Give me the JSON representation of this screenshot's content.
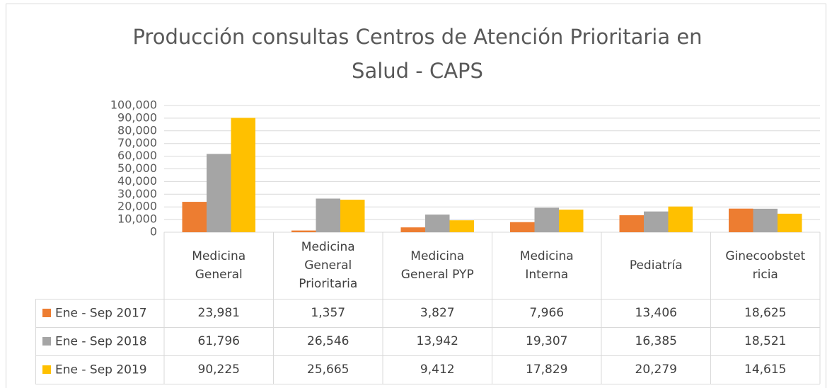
{
  "chart_data": {
    "type": "bar",
    "title": "Producción consultas Centros de Atención Prioritaria en Salud - CAPS",
    "categories": [
      "Medicina General",
      "Medicina General Prioritaria",
      "Medicina General PYP",
      "Medicina Interna",
      "Pediatría",
      "Ginecoobstetricia"
    ],
    "series": [
      {
        "name": "Ene - Sep 2017",
        "color": "#ed7d31",
        "values": [
          23981,
          1357,
          3827,
          7966,
          13406,
          18625
        ],
        "value_labels": [
          "23,981",
          "1,357",
          "3,827",
          "7,966",
          "13,406",
          "18,625"
        ]
      },
      {
        "name": "Ene - Sep 2018",
        "color": "#a5a5a5",
        "values": [
          61796,
          26546,
          13942,
          19307,
          16385,
          18521
        ],
        "value_labels": [
          "61,796",
          "26,546",
          "13,942",
          "19,307",
          "16,385",
          "18,521"
        ]
      },
      {
        "name": "Ene - Sep 2019",
        "color": "#ffc000",
        "values": [
          90225,
          25665,
          9412,
          17829,
          20279,
          14615
        ],
        "value_labels": [
          "90,225",
          "25,665",
          "9,412",
          "17,829",
          "20,279",
          "14,615"
        ]
      }
    ],
    "ylim": [
      0,
      100000
    ],
    "yticks": [
      0,
      {
        "value": 10000,
        "label": "10,000"
      },
      {
        "value": 20000,
        "label": "20,000"
      },
      {
        "value": 30000,
        "label": "30,000"
      },
      {
        "value": 40000,
        "label": "40,000"
      },
      {
        "value": 50000,
        "label": "50,000"
      },
      {
        "value": 60000,
        "label": "60,000"
      },
      {
        "value": 70000,
        "label": "70,000"
      },
      {
        "value": 80000,
        "label": "80,000"
      },
      {
        "value": 90000,
        "label": "90,000"
      },
      {
        "value": 100000,
        "label": "100,000"
      }
    ],
    "grid": true
  }
}
